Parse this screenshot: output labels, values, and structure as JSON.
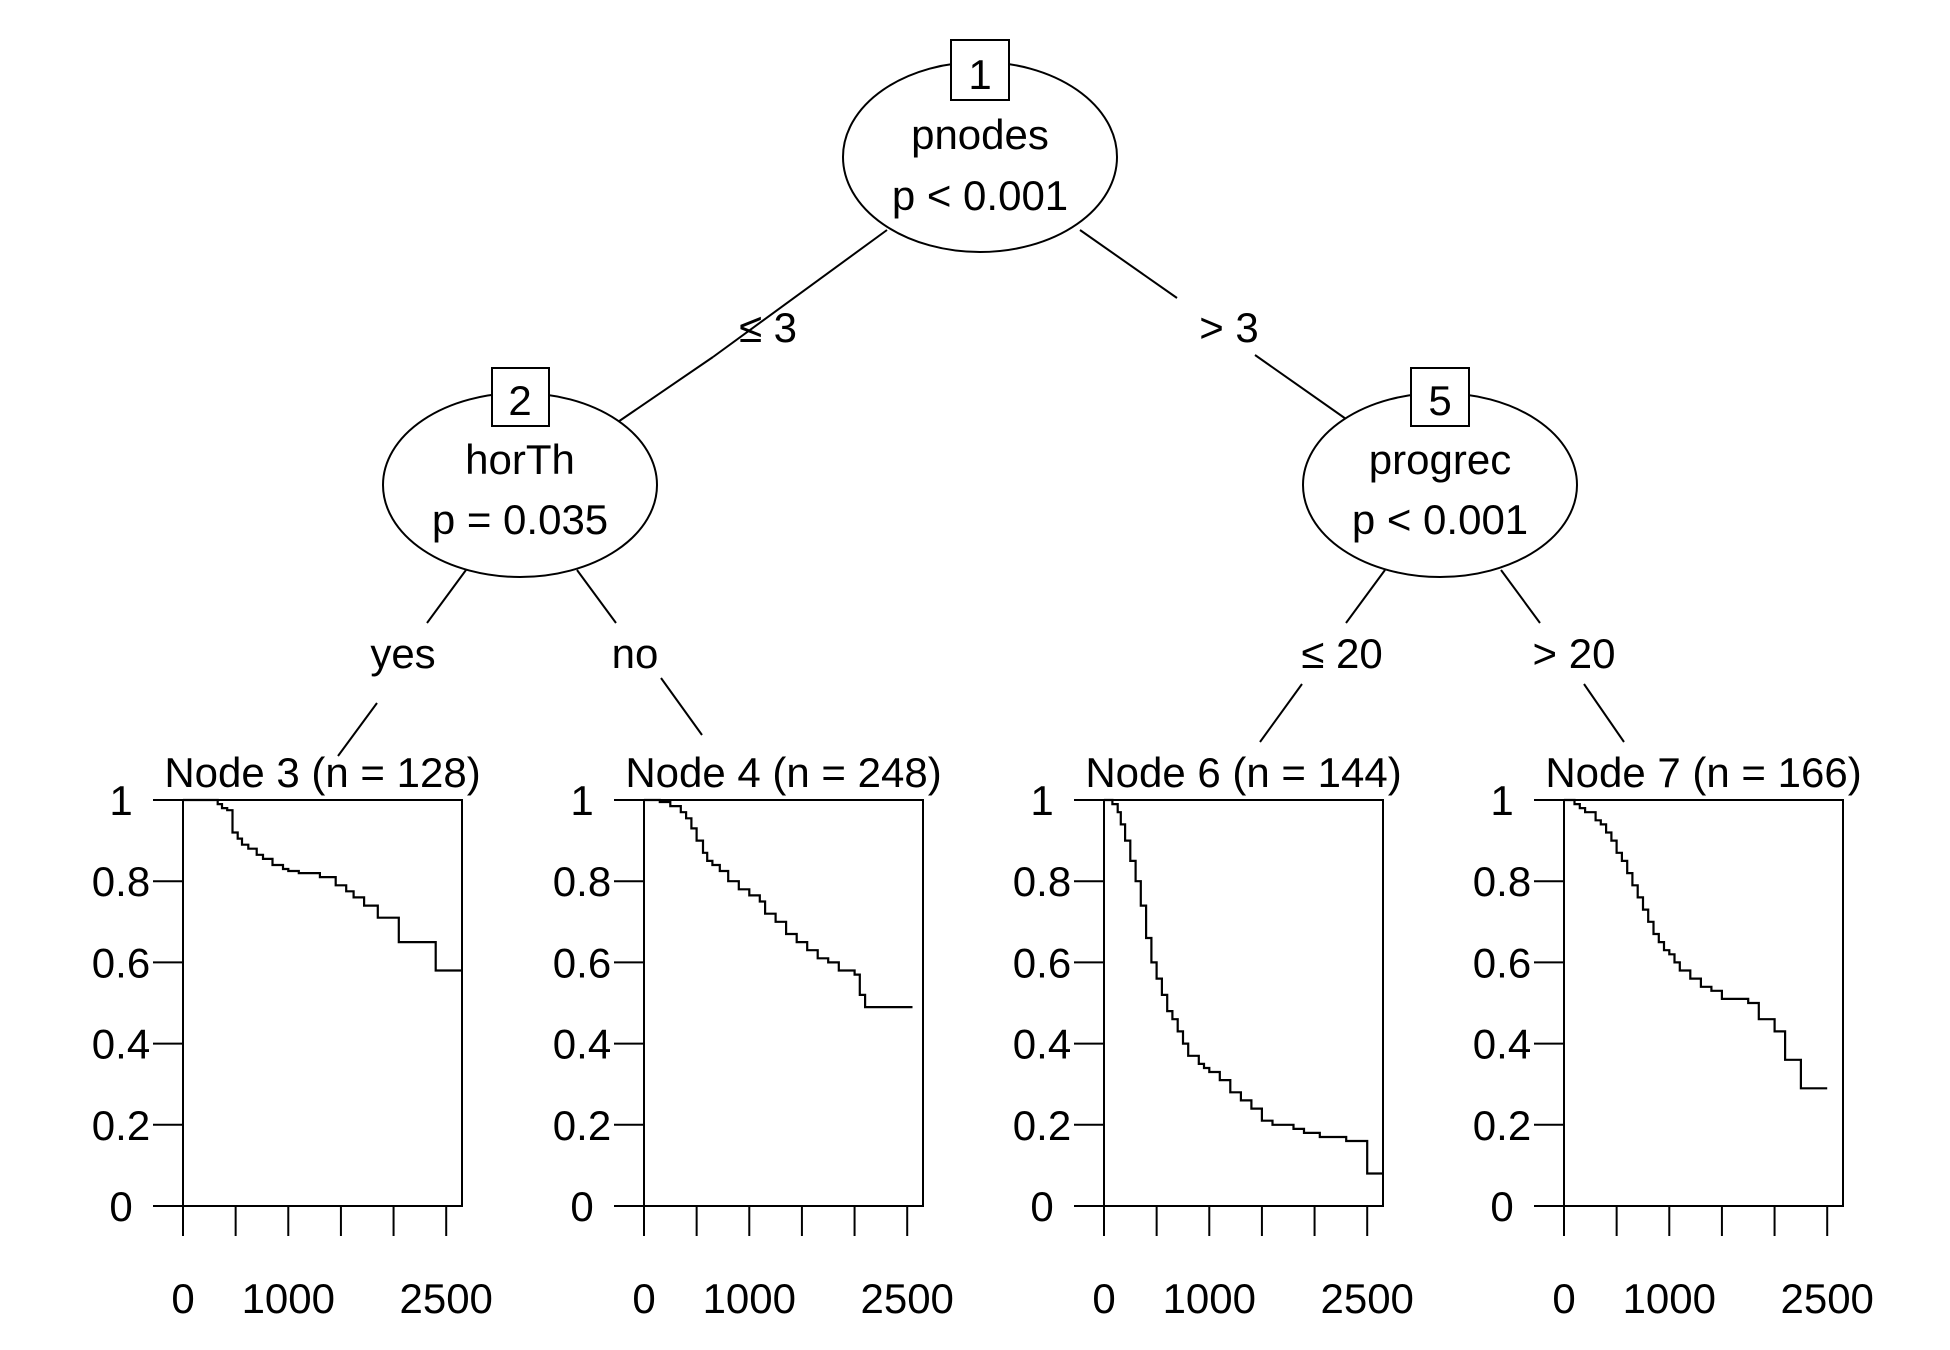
{
  "inner_nodes": [
    {
      "id": "1",
      "variable": "pnodes",
      "pvalue": "p < 0.001"
    },
    {
      "id": "2",
      "variable": "horTh",
      "pvalue": "p = 0.035"
    },
    {
      "id": "5",
      "variable": "progrec",
      "pvalue": "p < 0.001"
    }
  ],
  "edges": [
    {
      "from": "1",
      "to": "2",
      "label": "≤ 3"
    },
    {
      "from": "1",
      "to": "5",
      "label": "> 3"
    },
    {
      "from": "2",
      "to": "3",
      "label": "yes"
    },
    {
      "from": "2",
      "to": "4",
      "label": "no"
    },
    {
      "from": "5",
      "to": "6",
      "label": "≤ 20"
    },
    {
      "from": "5",
      "to": "7",
      "label": "> 20"
    }
  ],
  "chart_data": [
    {
      "type": "line",
      "title": "Node 3 (n = 128)",
      "ylim": [
        0,
        1
      ],
      "yticks": [
        "0",
        "0.2",
        "0.4",
        "0.6",
        "0.8",
        "1"
      ],
      "xticks": [
        "0",
        "1000",
        "2500"
      ],
      "series": [
        {
          "x": [
            0,
            300,
            330,
            370,
            420,
            470,
            520,
            560,
            620,
            700,
            760,
            850,
            950,
            1000,
            1100,
            1200,
            1300,
            1450,
            1550,
            1620,
            1720,
            1850,
            2050,
            2250,
            2400,
            2650
          ],
          "y": [
            1,
            1,
            0.99,
            0.98,
            0.975,
            0.92,
            0.905,
            0.89,
            0.88,
            0.865,
            0.855,
            0.84,
            0.83,
            0.825,
            0.82,
            0.82,
            0.81,
            0.79,
            0.775,
            0.76,
            0.74,
            0.71,
            0.65,
            0.65,
            0.58,
            0.58
          ]
        }
      ]
    },
    {
      "type": "line",
      "title": "Node 4 (n = 248)",
      "ylim": [
        0,
        1
      ],
      "yticks": [
        "0",
        "0.2",
        "0.4",
        "0.6",
        "0.8",
        "1"
      ],
      "xticks": [
        "0",
        "1000",
        "2500"
      ],
      "series": [
        {
          "x": [
            0,
            150,
            250,
            350,
            400,
            450,
            500,
            560,
            600,
            650,
            720,
            800,
            900,
            1000,
            1100,
            1150,
            1250,
            1350,
            1450,
            1550,
            1650,
            1750,
            1850,
            2000,
            2050,
            2100,
            2550
          ],
          "y": [
            1,
            0.995,
            0.985,
            0.97,
            0.955,
            0.93,
            0.9,
            0.87,
            0.85,
            0.84,
            0.825,
            0.8,
            0.78,
            0.765,
            0.75,
            0.72,
            0.7,
            0.67,
            0.65,
            0.63,
            0.61,
            0.6,
            0.58,
            0.57,
            0.52,
            0.49,
            0.49
          ]
        }
      ]
    },
    {
      "type": "line",
      "title": "Node 6 (n = 144)",
      "ylim": [
        0,
        1
      ],
      "yticks": [
        "0",
        "0.2",
        "0.4",
        "0.6",
        "0.8",
        "1"
      ],
      "xticks": [
        "0",
        "1000",
        "2500"
      ],
      "series": [
        {
          "x": [
            0,
            80,
            130,
            160,
            200,
            250,
            300,
            350,
            400,
            450,
            500,
            550,
            600,
            650,
            700,
            750,
            800,
            900,
            950,
            1000,
            1100,
            1200,
            1300,
            1400,
            1500,
            1600,
            1800,
            1900,
            2050,
            2300,
            2500,
            2650
          ],
          "y": [
            1,
            0.99,
            0.97,
            0.94,
            0.9,
            0.85,
            0.8,
            0.74,
            0.66,
            0.6,
            0.56,
            0.52,
            0.48,
            0.46,
            0.43,
            0.4,
            0.37,
            0.35,
            0.34,
            0.33,
            0.31,
            0.28,
            0.26,
            0.24,
            0.21,
            0.2,
            0.19,
            0.18,
            0.17,
            0.16,
            0.08,
            0.08
          ]
        }
      ]
    },
    {
      "type": "line",
      "title": "Node 7 (n = 166)",
      "ylim": [
        0,
        1
      ],
      "yticks": [
        "0",
        "0.2",
        "0.4",
        "0.6",
        "0.8",
        "1"
      ],
      "xticks": [
        "0",
        "1000",
        "2500"
      ],
      "series": [
        {
          "x": [
            0,
            100,
            150,
            200,
            300,
            350,
            400,
            450,
            500,
            550,
            600,
            650,
            700,
            750,
            800,
            850,
            900,
            950,
            1000,
            1050,
            1100,
            1200,
            1300,
            1400,
            1500,
            1650,
            1750,
            1850,
            2000,
            2100,
            2250,
            2500
          ],
          "y": [
            1,
            0.99,
            0.98,
            0.97,
            0.95,
            0.94,
            0.92,
            0.9,
            0.87,
            0.85,
            0.82,
            0.79,
            0.76,
            0.73,
            0.7,
            0.67,
            0.65,
            0.63,
            0.62,
            0.6,
            0.58,
            0.56,
            0.54,
            0.53,
            0.51,
            0.51,
            0.5,
            0.46,
            0.43,
            0.36,
            0.29,
            0.29
          ]
        }
      ]
    }
  ]
}
